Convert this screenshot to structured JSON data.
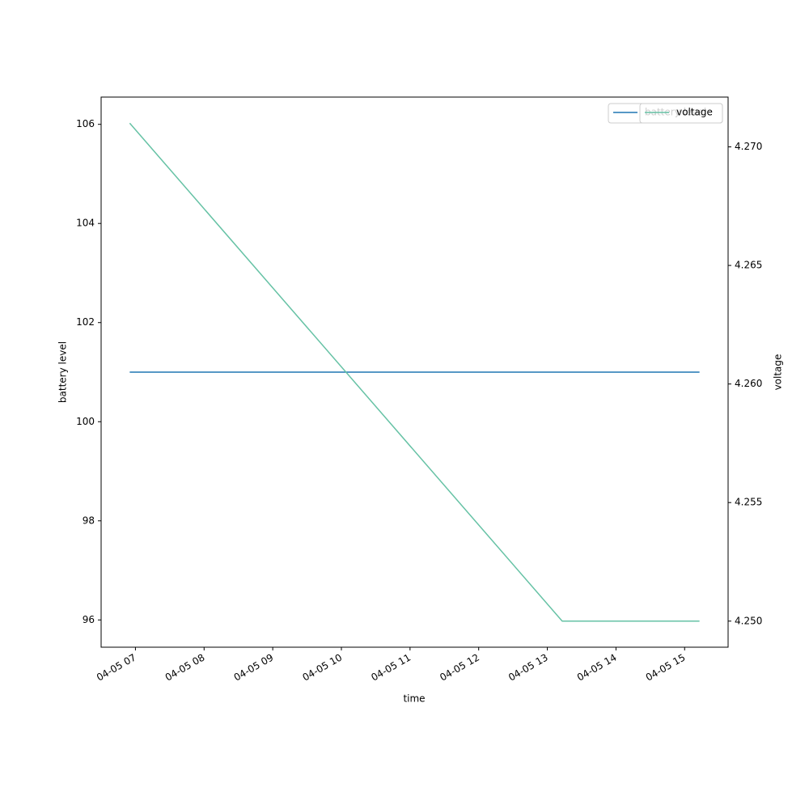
{
  "chart_data": {
    "type": "line",
    "x": [
      "04-05 06:55",
      "04-05 13:13",
      "04-05 15:13"
    ],
    "series": [
      {
        "name": "battery level",
        "color": "#1f77b4",
        "values": [
          101,
          101,
          101
        ]
      },
      {
        "name": "voltage",
        "color": "#66c2a5",
        "axis": "y2",
        "values": [
          4.271,
          4.25,
          4.25
        ]
      }
    ],
    "xlabel": "time",
    "ylabel": "battery level",
    "y2label": "voltage",
    "xlim": [
      "04-05 06:30",
      "04-05 15:38"
    ],
    "xticks": [
      "04-05 07",
      "04-05 08",
      "04-05 09",
      "04-05 10",
      "04-05 11",
      "04-05 12",
      "04-05 13",
      "04-05 14",
      "04-05 15"
    ],
    "ylim": [
      95.45,
      106.55
    ],
    "yticks": [
      96,
      98,
      100,
      102,
      104,
      106
    ],
    "y2lim": [
      4.2489,
      4.2721
    ],
    "y2ticks": [
      {
        "value": 4.25,
        "label": "4.250"
      },
      4.255,
      {
        "value": 4.26,
        "label": "4.260"
      },
      4.265,
      {
        "value": 4.27,
        "label": "4.270"
      }
    ],
    "legend": "upper right"
  }
}
